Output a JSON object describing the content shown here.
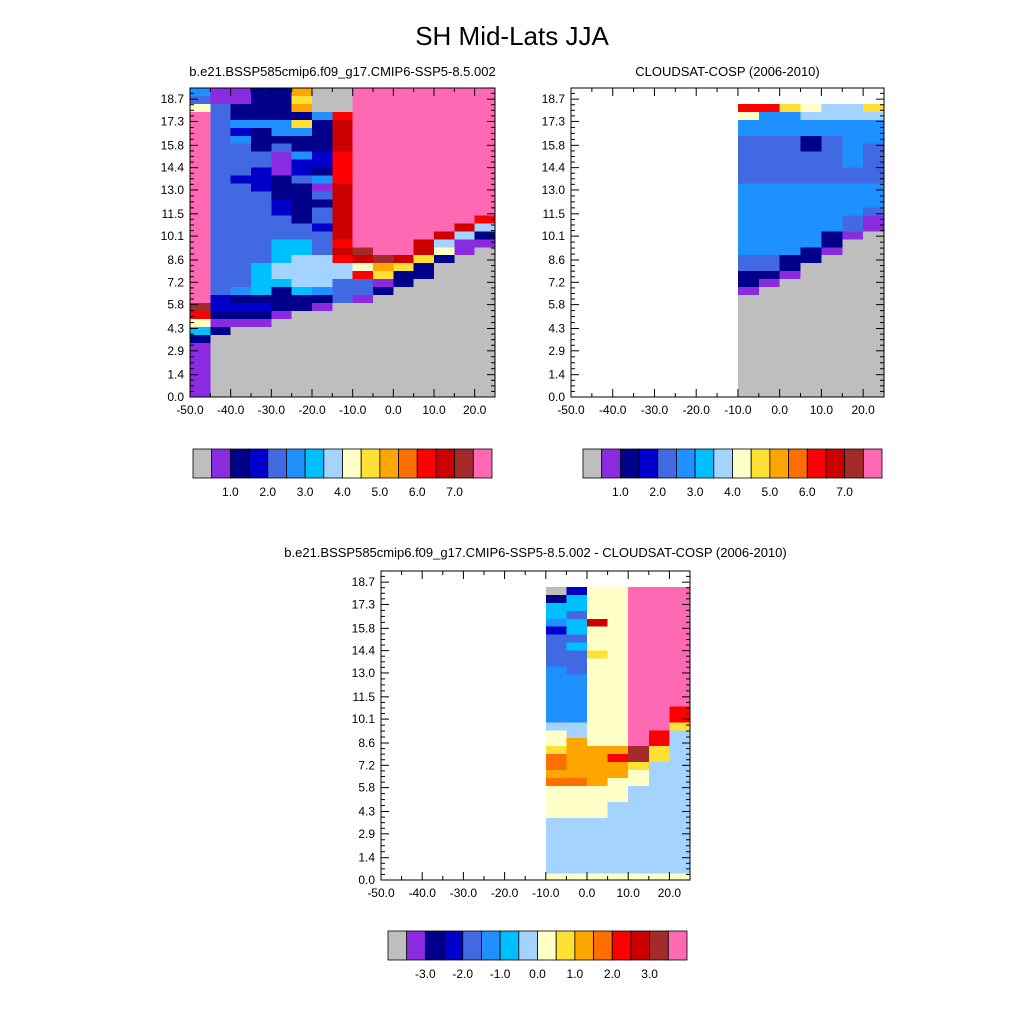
{
  "chart_data": {
    "title": "SH Mid-Lats JJA",
    "panels": [
      {
        "title": "b.e21.BSSP585cmip6.f09_g17.CMIP6-SSP5-8.5.002",
        "type": "heatmap",
        "x_ticks": [
          "-50.0",
          "-40.0",
          "-30.0",
          "-20.0",
          "-10.0",
          "0.0",
          "10.0",
          "20.0"
        ],
        "y_ticks": [
          "0.0",
          "1.4",
          "2.9",
          "4.3",
          "5.8",
          "7.2",
          "8.6",
          "10.1",
          "11.5",
          "13.0",
          "14.4",
          "15.8",
          "17.3",
          "18.7"
        ],
        "xlim": [
          -50,
          25
        ],
        "ylim": [
          0,
          19.4
        ],
        "colorbar": {
          "colors": [
            "#bebebe",
            "#8a2be2",
            "#00008b",
            "#0000cd",
            "#4169e1",
            "#1e90ff",
            "#00bfff",
            "#a4d3ff",
            "#ffffc8",
            "#ffe135",
            "#ffa500",
            "#ff6f00",
            "#ff0000",
            "#cd0000",
            "#a52a2a",
            "#ff69b4"
          ],
          "labels": [
            "1.0",
            "2.0",
            "3.0",
            "4.0",
            "5.0",
            "6.0",
            "7.0"
          ]
        },
        "grid": {
          "x0": -50,
          "dx": 5,
          "y0": 0,
          "dy": 0.5,
          "legend": ".=gray(no data) P=purple N=navy B=medium-blue R=royal-blue D=dodger-blue S=sky-blue L=light-blue Y=pale-yellow G=gold O=orange T=dark-orange F=red C=dark-red M=maroon K=pink",
          "rows": [
            "DPPNNO..KKKKKKKKKKFT.",
            "RPPNNG..KKKKKKKKKKFP.",
            "YRNNNO..KKKKKKKKKKFP.",
            "KRNNNNDFKKKKKKKKKKF..",
            "KRDDDGNCKKKKKKKKKKG..",
            "KRBNDDNCKKKKKKKKKMG..",
            "KRDNNNNCKKKKKKKKKCY..",
            "KRRNRNNCKKKKKKKKKCS..",
            "KRRRPDBFKKKKKKKKKFS..",
            "KRRRPBBFKKKKKKKKKFN..",
            "KRRBPBNFKKKKKKKKKFN..",
            "KRBBNRDFKKKKKKKKKG...",
            "KRRBNNPCKKKKKKKKKG...",
            "KRRRNNRCKKKKKKKKOPP..",
            "KRRRBNNCKKKKKKKKDP...",
            "KRRRBNRCKKKKKKKMDP...",
            "KRRRRNRCKKKKKKFLN....",
            "KRRRRRBCKKKKKCLNN....",
            "KRRRRRRCKKKKCLN......",
            "KRRRSSRFKKKCLPP......",
            "KRRRSSRCMKKCYP.......",
            "KRRRSLLFCMCGN........",
            "KRRSLLLLYOGN.........",
            "KRRSLLLLFGNN.........",
            "KRRSSLLRRPN..........",
            "KRDSNSDRRN...........",
            "KBNNNNNRP............",
            "MBBBNNP..............",
            "FNNNP................",
            "YPPP.................",
            "SN...................",
            "N....................",
            "P....................",
            "P....................",
            "P....................",
            "P....................",
            "P....................",
            "P....................",
            "P....................",
            "P...................."
          ]
        }
      },
      {
        "title": "CLOUDSAT-COSP (2006-2010)",
        "type": "heatmap",
        "x_ticks": [
          "-50.0",
          "-40.0",
          "-30.0",
          "-20.0",
          "-10.0",
          "0.0",
          "10.0",
          "20.0"
        ],
        "y_ticks": [
          "0.0",
          "1.4",
          "2.9",
          "4.3",
          "5.8",
          "7.2",
          "8.6",
          "10.1",
          "11.5",
          "13.0",
          "14.4",
          "15.8",
          "17.3",
          "18.7"
        ],
        "xlim": [
          -50,
          25
        ],
        "ylim": [
          0,
          19.4
        ],
        "colorbar": {
          "colors": [
            "#bebebe",
            "#8a2be2",
            "#00008b",
            "#0000cd",
            "#4169e1",
            "#1e90ff",
            "#00bfff",
            "#a4d3ff",
            "#ffffc8",
            "#ffe135",
            "#ffa500",
            "#ff6f00",
            "#ff0000",
            "#cd0000",
            "#a52a2a",
            "#ff69b4"
          ],
          "labels": [
            "1.0",
            "2.0",
            "3.0",
            "4.0",
            "5.0",
            "6.0",
            "7.0"
          ]
        },
        "grid": {
          "x0": -50,
          "dx": 5,
          "y0": 0,
          "dy": 0.5,
          "legend": "_=white(no obs) .=gray(no data) other letters as in panel 1",
          "rows": [
            "______________________",
            "______________________",
            "________FFGYLLGLBN____",
            "________YDDLLLLLDN____",
            "________DDDDDDDSLN____",
            "________DDDDDDDSRN____",
            "________RRRNRDDSRN....",
            "________RRRNRDRSRN....",
            "________RRRRRDRSRP....",
            "________RRRRRDRSNP....",
            "________RRRRRRRDNP....",
            "________RRRRRRRRN.....",
            "________DDDDDDDRN.....",
            "________DDDDDDDRP.....",
            "________DDDDDDDD......",
            "________DDDDDDRP......",
            "________DDDDDRP.......",
            "________DDDDDRP.......",
            "________DDDDNP........",
            "________DDDDN.........",
            "________DDDNP.........",
            "________RRNN..........",
            "________RRN...........",
            "________NNP...........",
            "________NP............",
            "________P.............",
            "________..............",
            "________..............",
            "________..............",
            "________..............",
            "________..............",
            "________..............",
            "________..............",
            "________..............",
            "________..............",
            "________..............",
            "________..............",
            "________..............",
            "________..............",
            "________.............."
          ]
        }
      },
      {
        "title": "b.e21.BSSP585cmip6.f09_g17.CMIP6-SSP5-8.5.002 - CLOUDSAT-COSP (2006-2010)",
        "type": "heatmap",
        "x_ticks": [
          "-50.0",
          "-40.0",
          "-30.0",
          "-20.0",
          "-10.0",
          "0.0",
          "10.0",
          "20.0"
        ],
        "y_ticks": [
          "0.0",
          "1.4",
          "2.9",
          "4.3",
          "5.8",
          "7.2",
          "8.6",
          "10.1",
          "11.5",
          "13.0",
          "14.4",
          "15.8",
          "17.3",
          "18.7"
        ],
        "xlim": [
          -50,
          25
        ],
        "ylim": [
          0,
          19.4
        ],
        "colorbar": {
          "colors": [
            "#bebebe",
            "#8a2be2",
            "#00008b",
            "#0000cd",
            "#4169e1",
            "#1e90ff",
            "#00bfff",
            "#a4d3ff",
            "#ffffc8",
            "#ffe135",
            "#ffa500",
            "#ff6f00",
            "#ff0000",
            "#cd0000",
            "#a52a2a",
            "#ff69b4"
          ],
          "labels": [
            "-3.0",
            "-2.0",
            "-1.0",
            "0.0",
            "1.0",
            "2.0",
            "3.0"
          ]
        },
        "grid": {
          "x0": -50,
          "dx": 5,
          "y0": 0,
          "dy": 0.5,
          "legend": "_=white(no obs) other letters as in panel 1",
          "rows": [
            "______________________",
            "______________________",
            "________.BYYKKKKKKYLLL",
            "________NSYYKKKKKKYLLL",
            "________SSYYKKKKKKYLLL",
            "________SRYYKKKKKKYLLL",
            "________DSCYKKKKKFYLLL",
            "________BSYYKKKKKFYLLL",
            "________RRYYKKKKMFYLLL",
            "________RSYYKKKKMFYLLL",
            "________RRGYKKKKOOLLLL",
            "________RRYYKKKKKOLLLL",
            "________DRYYKKKKKFLLLL",
            "________DDYYKKKKFFLLLL",
            "________DDYYKKKKMLLLLL",
            "________DDYYKKKMMLLLLL",
            "________DDYYKKKFGYLLLL",
            "________DDYYKKFGLLLLLL",
            "________DDYYKKFGYLLLLL",
            "________LLYYKKGYYLLLLL",
            "________YLYYKFLLLLLLLL",
            "________YOYYKFLLLLLLLL",
            "________GOOOMGLLLLLLLL",
            "________TOOFMGLLLLLLLL",
            "________TOOOGLLLLLLLLL",
            "________OOOOYLLLLLLLLL",
            "________TTOYYLLLLLLLLL",
            "________YYYYLLLLLLLLLL",
            "________YYYYLLLLLLLLLL",
            "________YYYLLLLLLLLLLL",
            "________YYYLLLLLLLLLLL",
            "________LLLLLLLLLLLLLL",
            "________LLLLLLLLLLLLLL",
            "________LLLLLLLLLLLLLL",
            "________LLLLLLLLLLLLLL",
            "________LLLLLLLLLLLLLL",
            "________LLLLLLLLLLLLLL",
            "________LLLLLLLLLLYYYY",
            "________YYYYYYYYYYYYYY",
            "________YYYYYYYYYYYYYY"
          ]
        }
      }
    ]
  }
}
